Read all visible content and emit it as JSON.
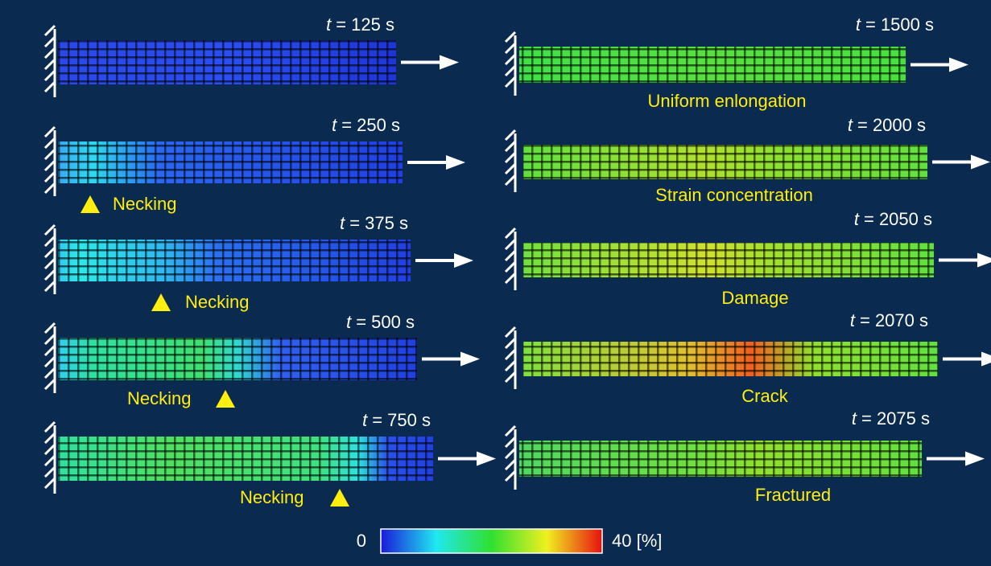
{
  "variable": "t",
  "left": [
    {
      "time": "= 125 s"
    },
    {
      "time": "= 250 s",
      "label": "Necking"
    },
    {
      "time": "= 375 s",
      "label": "Necking"
    },
    {
      "time": "= 500 s",
      "label": "Necking"
    },
    {
      "time": "= 750 s",
      "label": "Necking"
    }
  ],
  "right": [
    {
      "time": "= 1500 s",
      "label": "Uniform enlongation"
    },
    {
      "time": "= 2000 s",
      "label": "Strain concentration"
    },
    {
      "time": "= 2050 s",
      "label": "Damage"
    },
    {
      "time": "= 2070 s",
      "label": "Crack"
    },
    {
      "time": "= 2075 s",
      "label": "Fractured"
    }
  ],
  "colorbar": {
    "min": "0",
    "max": "40 [%]"
  }
}
